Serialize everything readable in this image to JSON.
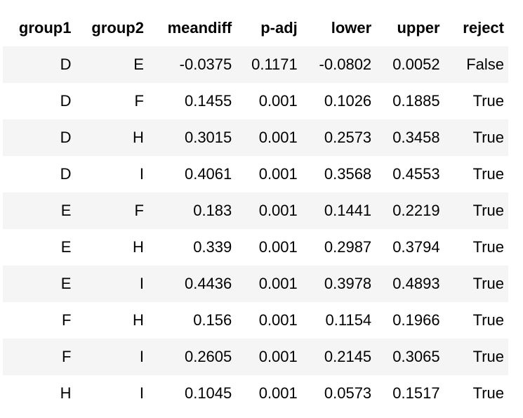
{
  "table": {
    "columns": [
      "group1",
      "group2",
      "meandiff",
      "p-adj",
      "lower",
      "upper",
      "reject"
    ],
    "rows": [
      [
        "D",
        "E",
        "-0.0375",
        "0.1171",
        "-0.0802",
        "0.0052",
        "False"
      ],
      [
        "D",
        "F",
        "0.1455",
        "0.001",
        "0.1026",
        "0.1885",
        "True"
      ],
      [
        "D",
        "H",
        "0.3015",
        "0.001",
        "0.2573",
        "0.3458",
        "True"
      ],
      [
        "D",
        "I",
        "0.4061",
        "0.001",
        "0.3568",
        "0.4553",
        "True"
      ],
      [
        "E",
        "F",
        "0.183",
        "0.001",
        "0.1441",
        "0.2219",
        "True"
      ],
      [
        "E",
        "H",
        "0.339",
        "0.001",
        "0.2987",
        "0.3794",
        "True"
      ],
      [
        "E",
        "I",
        "0.4436",
        "0.001",
        "0.3978",
        "0.4893",
        "True"
      ],
      [
        "F",
        "H",
        "0.156",
        "0.001",
        "0.1154",
        "0.1966",
        "True"
      ],
      [
        "F",
        "I",
        "0.2605",
        "0.001",
        "0.2145",
        "0.3065",
        "True"
      ],
      [
        "H",
        "I",
        "0.1045",
        "0.001",
        "0.0573",
        "0.1517",
        "True"
      ]
    ]
  },
  "colors": {
    "stripe": "#f5f5f5",
    "background": "#ffffff",
    "text": "#000000"
  }
}
